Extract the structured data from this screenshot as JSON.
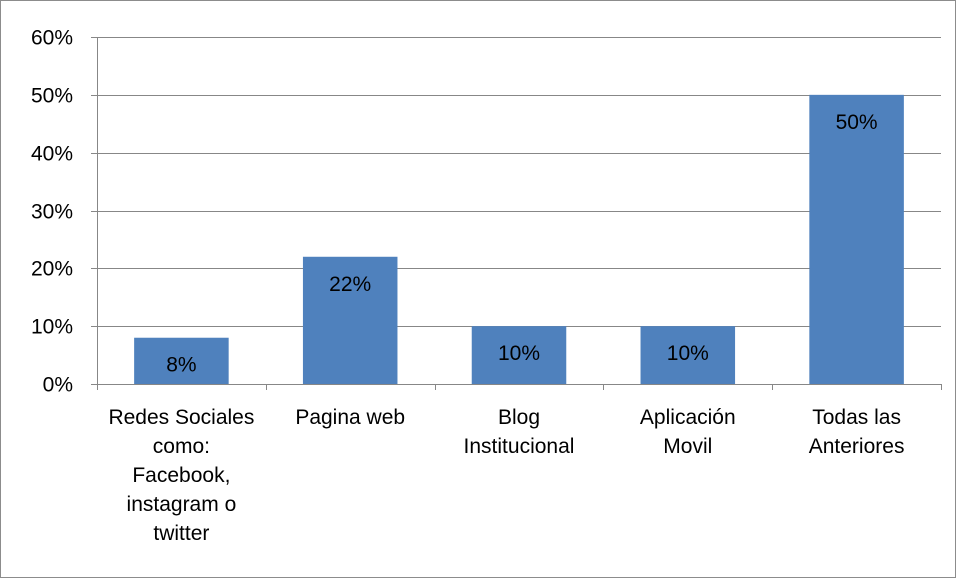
{
  "chart_data": {
    "type": "bar",
    "title": "",
    "xlabel": "",
    "ylabel": "",
    "categories": [
      "Redes Sociales como: Facebook, instagram o twitter",
      "Pagina web",
      "Blog Institucional",
      "Aplicación Movil",
      "Todas las Anteriores"
    ],
    "category_lines": [
      [
        "Redes Sociales",
        "como:",
        "Facebook,",
        "instagram o",
        "twitter"
      ],
      [
        "Pagina web"
      ],
      [
        "Blog",
        "Institucional"
      ],
      [
        "Aplicación",
        "Movil"
      ],
      [
        "Todas las",
        "Anteriores"
      ]
    ],
    "values": [
      8,
      22,
      10,
      10,
      50
    ],
    "data_labels": [
      "8%",
      "22%",
      "10%",
      "10%",
      "50%"
    ],
    "ylim": [
      0,
      60
    ],
    "yticks": [
      0,
      10,
      20,
      30,
      40,
      50,
      60
    ],
    "ytick_labels": [
      "0%",
      "10%",
      "20%",
      "30%",
      "40%",
      "50%",
      "60%"
    ],
    "grid": true,
    "legend": "none",
    "colors": {
      "bar": "#4f81bd",
      "grid": "#878787",
      "axis": "#878787",
      "frame": "#8c8c8c"
    }
  }
}
